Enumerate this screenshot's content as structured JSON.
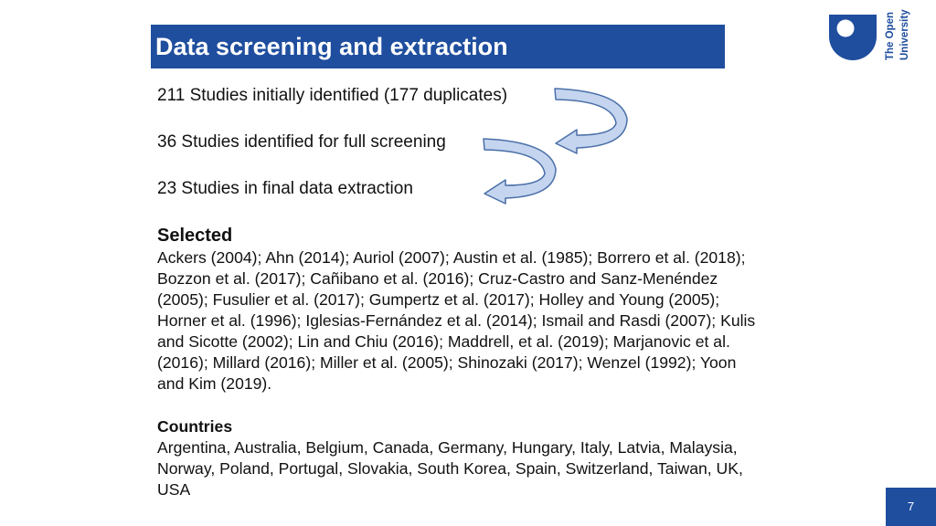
{
  "slide": {
    "title": "Data screening and extraction",
    "page_number": "7"
  },
  "logo": {
    "line1": "The Open",
    "line2": "University",
    "color": "#1f4e9e"
  },
  "steps": [
    {
      "text": "211 Studies initially identified (177 duplicates)"
    },
    {
      "text": "36 Studies identified for full screening"
    },
    {
      "text": "23 Studies in final data extraction"
    }
  ],
  "selected": {
    "heading": "Selected",
    "text": "Ackers (2004); Ahn (2014); Auriol (2007); Austin et al. (1985); Borrero et al. (2018); Bozzon et al. (2017); Cañibano et al. (2016); Cruz-Castro and Sanz-Menéndez (2005); Fusulier et al. (2017); Gumpertz et al. (2017); Holley and Young (2005); Horner et al. (1996); Iglesias-Fernández et al. (2014); Ismail and Rasdi (2007); Kulis and Sicotte (2002); Lin and Chiu (2016); Maddrell, et al. (2019); Marjanovic et al. (2016); Millard (2016); Miller et al. (2005); Shinozaki (2017); Wenzel (1992); Yoon and Kim (2019)."
  },
  "countries": {
    "heading": "Countries",
    "text": "Argentina, Australia, Belgium, Canada, Germany, Hungary, Italy, Latvia, Malaysia, Norway, Poland, Portugal, Slovakia, South Korea, Spain, Switzerland, Taiwan, UK, USA"
  },
  "colors": {
    "brand_blue": "#1f4e9e",
    "arrow_fill": "#c5d5ef",
    "arrow_stroke": "#4a6fa8"
  },
  "icons": {
    "logo_shield": "open-university-shield-icon",
    "curved_arrow": "curved-arrow-icon"
  }
}
